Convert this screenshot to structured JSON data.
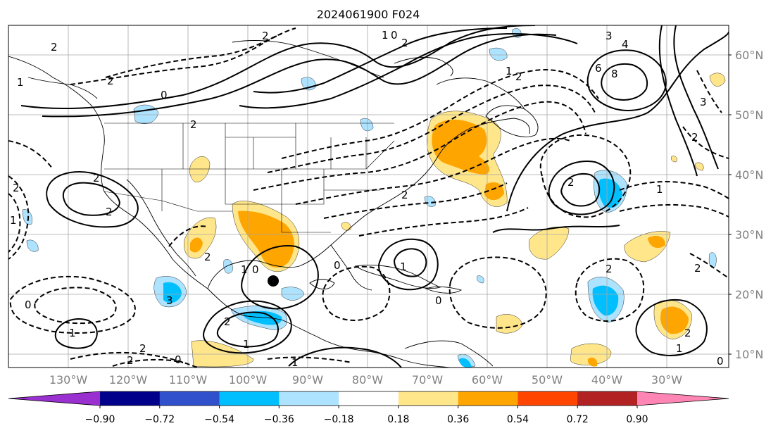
{
  "title": "2024061900 F024",
  "lat_labels": [
    "60°N",
    "50°N",
    "40°N",
    "30°N",
    "20°N",
    "10°N"
  ],
  "lon_labels": [
    "130°W",
    "120°W",
    "110°W",
    "100°W",
    "90°W",
    "80°W",
    "70°W",
    "60°W",
    "50°W",
    "40°W",
    "30°W"
  ],
  "colorbar": {
    "ticks": [
      "−0.90",
      "−0.72",
      "−0.54",
      "−0.36",
      "−0.18",
      "0.18",
      "0.36",
      "0.54",
      "0.72",
      "0.90"
    ],
    "colors": [
      "#9b30d0",
      "#00008b",
      "#3050cc",
      "#00bfff",
      "#aee3ff",
      "#ffffff",
      "#ffe68a",
      "#ffa500",
      "#ff4500",
      "#b22222",
      "#ff85b4"
    ]
  },
  "contour_labels": [
    "2",
    "1",
    "0",
    "2",
    "3",
    "4",
    "6",
    "8",
    "2",
    "2",
    "1",
    "0",
    "2",
    "2",
    "2",
    "2",
    "1",
    "1",
    "2",
    "2",
    "2",
    "1",
    "2",
    "3",
    "2",
    "1",
    "0",
    "0",
    "1",
    "2",
    "3",
    "2",
    "0",
    "1",
    "1",
    "2",
    "2",
    "0",
    "2",
    "0",
    "1",
    "2",
    "1",
    "0"
  ],
  "colors": {
    "positive_fill": "#ffa500",
    "light_positive_fill": "#ffe68a",
    "negative_fill": "#00bfff",
    "light_negative_fill": "#aee3ff",
    "marker": "#000000"
  }
}
